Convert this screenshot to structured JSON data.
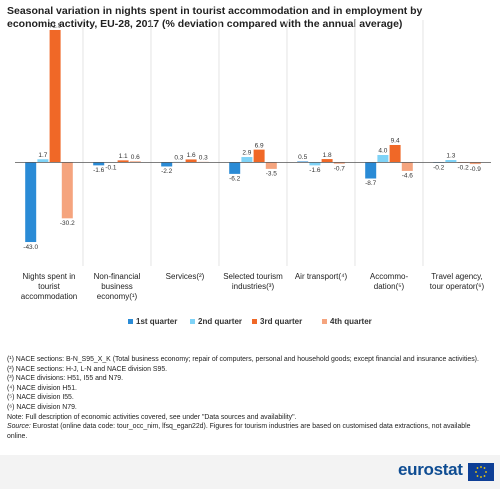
{
  "chart_data": {
    "type": "bar",
    "title": "Seasonal variation in nights spent in tourist accommodation and in employment by economic activity, EU-28, 2017 (% deviation compared with the annual average)",
    "categories": [
      "Nights spent in tourist accommodation",
      "Non-financial business economy(¹)",
      "Services(²)",
      "Selected tourism industries(³)",
      "Air transport(⁴)",
      "Accommo-dation(⁵)",
      "Travel agency, tour operator(⁶)"
    ],
    "series": [
      {
        "name": "1st quarter",
        "color": "#2a8bd6",
        "values": [
          -43.0,
          -1.6,
          -2.2,
          -6.2,
          0.5,
          -8.7,
          -0.2
        ],
        "value_labels": [
          "-43.0",
          "-1.6",
          "-2.2",
          "-6.2",
          "0.5",
          "-8.7",
          "-0.2"
        ]
      },
      {
        "name": "2nd quarter",
        "color": "#7fd3f7",
        "values": [
          1.7,
          -0.1,
          0.3,
          2.9,
          -1.6,
          4.0,
          1.3
        ],
        "value_labels": [
          "1.7",
          "-0.1",
          "0.3",
          "2.9",
          "-1.6",
          "4.0",
          "1.3"
        ]
      },
      {
        "name": "3rd quarter",
        "color": "#f06827",
        "values": [
          71.5,
          1.1,
          1.6,
          6.9,
          1.8,
          9.4,
          -0.2
        ],
        "value_labels": [
          "71.5",
          "1.1",
          "1.6",
          "6.9",
          "1.8",
          "9.4",
          "-0.2"
        ]
      },
      {
        "name": "4th quarter",
        "color": "#f5a47e",
        "values": [
          -30.2,
          0.6,
          0.3,
          -3.5,
          -0.7,
          -4.6,
          -0.9
        ],
        "value_labels": [
          "-30.2",
          "0.6",
          "0.3",
          "-3.5",
          "-0.7",
          "-4.6",
          "-0.9"
        ]
      }
    ],
    "ylim": [
      -50,
      75
    ]
  },
  "footnotes": [
    "(¹) NACE sections: B-N_S95_X_K (Total business economy; repair of computers, personal and household goods; except financial and insurance activities).",
    "(²) NACE sections: H-J, L-N and NACE division S95.",
    "(³) NACE divisions: H51, I55 and N79.",
    "(⁴) NACE division H51.",
    "(⁵) NACE division I55.",
    "(⁶) NACE division N79.",
    "Note: Full description of economic activities covered, see under \"Data sources and availability\"."
  ],
  "source_label": "Source:",
  "source": "Eurostat (online data code: tour_occ_nim, lfsq_egan22d). Figures for tourism industries are based on customised data extractions, not available online.",
  "logo": "eurostat"
}
